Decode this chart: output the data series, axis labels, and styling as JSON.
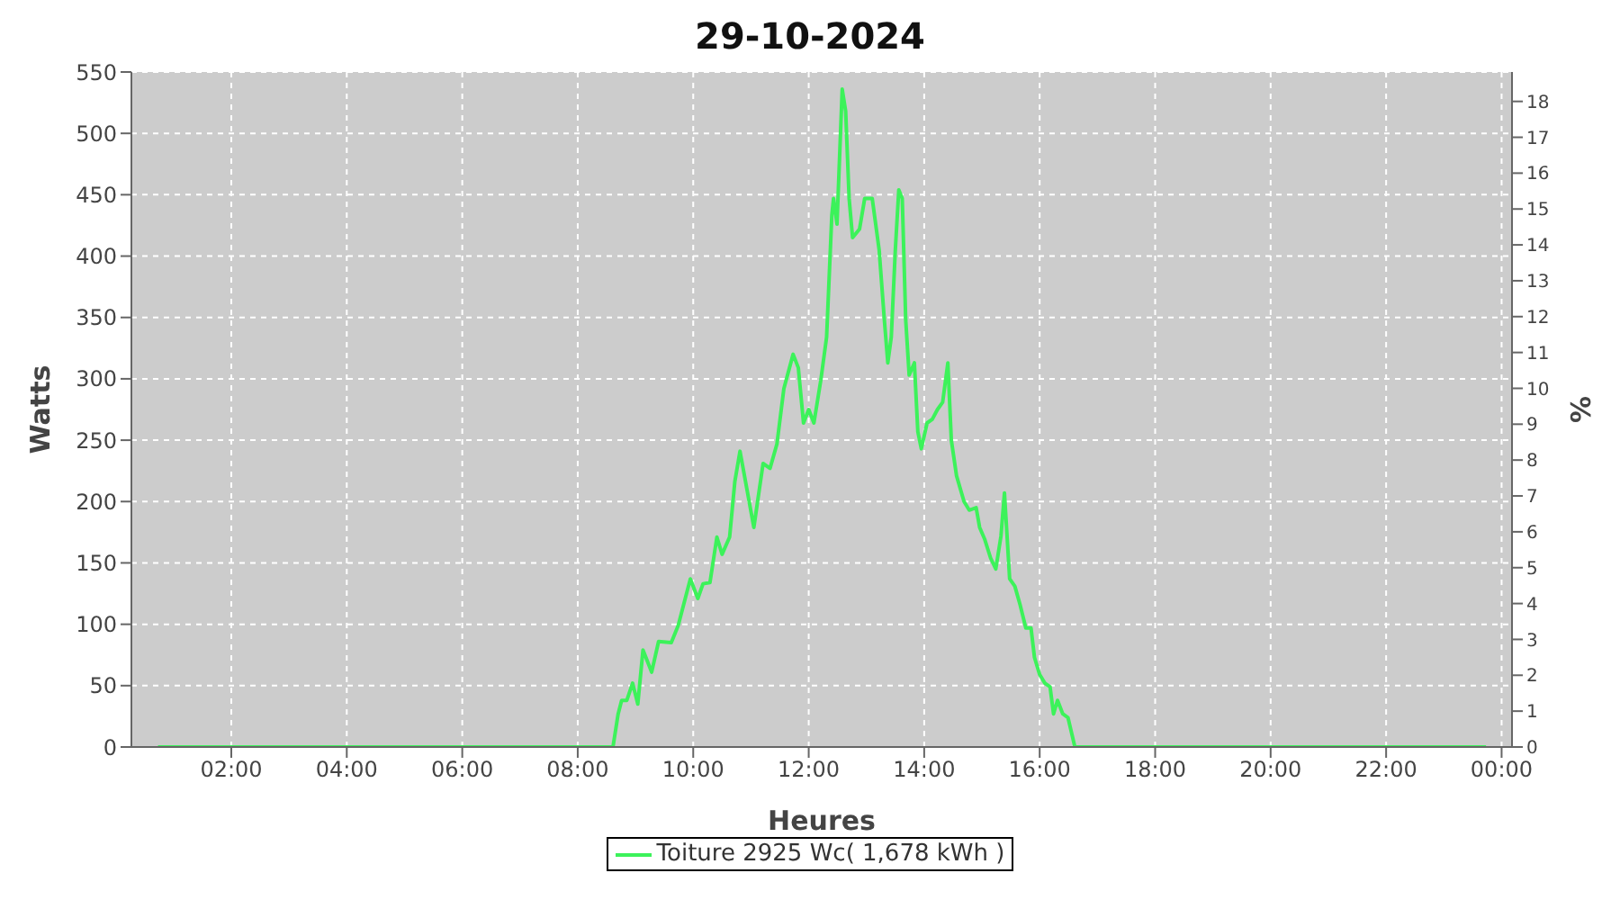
{
  "chart_data": {
    "type": "line",
    "title": "29-10-2024",
    "xlabel": "Heures",
    "ylabel": "Watts",
    "y2label": "%",
    "xlim": [
      0.27,
      24.18
    ],
    "xticks": [
      {
        "value": 2,
        "label": "02:00"
      },
      {
        "value": 4,
        "label": "04:00"
      },
      {
        "value": 6,
        "label": "06:00"
      },
      {
        "value": 8,
        "label": "08:00"
      },
      {
        "value": 10,
        "label": "10:00"
      },
      {
        "value": 12,
        "label": "12:00"
      },
      {
        "value": 14,
        "label": "14:00"
      },
      {
        "value": 16,
        "label": "16:00"
      },
      {
        "value": 18,
        "label": "18:00"
      },
      {
        "value": 20,
        "label": "20:00"
      },
      {
        "value": 22,
        "label": "22:00"
      },
      {
        "value": 24,
        "label": "00:00"
      }
    ],
    "ylim": [
      0,
      550
    ],
    "yticks": [
      0,
      50,
      100,
      150,
      200,
      250,
      300,
      350,
      400,
      450,
      500,
      550
    ],
    "y2lim": [
      0,
      18.82
    ],
    "y2ticks": [
      0,
      1,
      2,
      3,
      4,
      5,
      6,
      7,
      8,
      9,
      10,
      11,
      12,
      13,
      14,
      15,
      16,
      17,
      18
    ],
    "grid": true,
    "legend": "bottom",
    "marker": "none",
    "line_style": "solid",
    "series": [
      {
        "name": "Toiture 2925 Wc( 1,678 kWh )",
        "color": "#3cf25a",
        "x": [
          0.73,
          7.0,
          8.61,
          8.7,
          8.76,
          8.85,
          8.95,
          9.04,
          9.13,
          9.28,
          9.4,
          9.62,
          9.74,
          9.95,
          10.08,
          10.17,
          10.29,
          10.41,
          10.5,
          10.63,
          10.72,
          10.81,
          10.93,
          11.05,
          11.21,
          11.33,
          11.45,
          11.57,
          11.73,
          11.82,
          11.91,
          12.0,
          12.09,
          12.21,
          12.31,
          12.4,
          12.43,
          12.49,
          12.58,
          12.64,
          12.7,
          12.76,
          12.88,
          12.97,
          13.1,
          13.22,
          13.31,
          13.37,
          13.43,
          13.5,
          13.56,
          13.62,
          13.68,
          13.74,
          13.83,
          13.89,
          13.95,
          14.05,
          14.14,
          14.23,
          14.32,
          14.41,
          14.47,
          14.56,
          14.69,
          14.78,
          14.9,
          14.96,
          15.05,
          15.15,
          15.24,
          15.33,
          15.39,
          15.48,
          15.57,
          15.66,
          15.76,
          15.85,
          15.91,
          16.0,
          16.09,
          16.18,
          16.24,
          16.31,
          16.4,
          16.49,
          16.61,
          23.73
        ],
        "values": [
          0,
          0,
          0,
          27,
          38,
          38,
          52,
          35,
          79,
          61,
          86,
          85,
          99,
          137,
          121,
          133,
          134,
          171,
          157,
          171,
          216,
          241,
          210,
          179,
          231,
          227,
          247,
          292,
          320,
          309,
          264,
          275,
          264,
          299,
          334,
          433,
          447,
          426,
          536,
          518,
          447,
          415,
          422,
          447,
          447,
          405,
          348,
          313,
          334,
          405,
          454,
          447,
          348,
          303,
          313,
          257,
          243,
          264,
          267,
          275,
          281,
          313,
          250,
          221,
          200,
          193,
          195,
          179,
          169,
          154,
          145,
          172,
          207,
          137,
          131,
          116,
          97,
          97,
          73,
          59,
          52,
          49,
          27,
          38,
          27,
          24,
          0,
          0
        ]
      }
    ]
  }
}
